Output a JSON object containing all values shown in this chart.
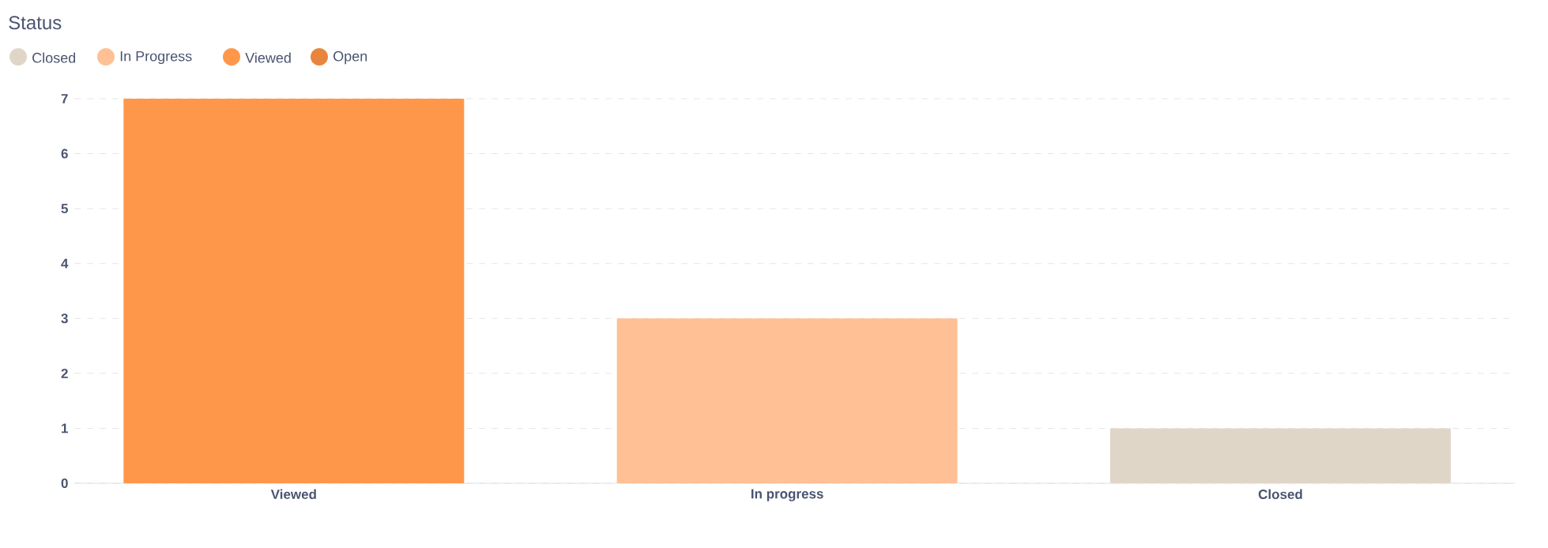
{
  "chart_data": {
    "type": "bar",
    "title": "Status",
    "categories": [
      "Viewed",
      "In progress",
      "Closed"
    ],
    "series": [
      {
        "name": "Closed",
        "color": "#e0d6c8",
        "values": [
          null,
          null,
          1
        ]
      },
      {
        "name": "In Progress",
        "color": "#ffc095",
        "values": [
          null,
          3,
          null
        ]
      },
      {
        "name": "Viewed",
        "color": "#ff974a",
        "values": [
          7,
          null,
          null
        ]
      },
      {
        "name": "Open",
        "color": "#e8843c",
        "values": [
          null,
          null,
          null
        ]
      }
    ],
    "stacked": true,
    "ylim": [
      0,
      7
    ],
    "yticks": [
      0,
      1,
      2,
      3,
      4,
      5,
      6,
      7
    ],
    "grid": "y",
    "legend": "top left"
  }
}
